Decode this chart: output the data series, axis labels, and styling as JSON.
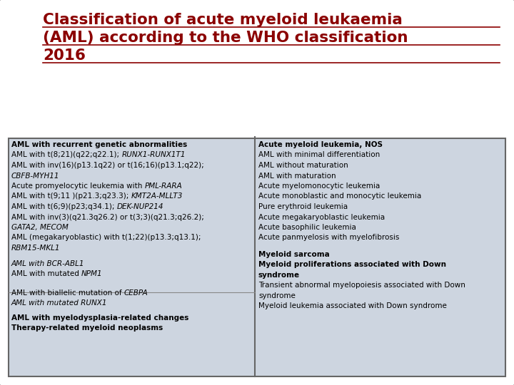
{
  "title_line1": "Classification of acute myeloid leukaemia",
  "title_line2": "(AML) according to the WHO classification",
  "title_line3": "2016",
  "title_color": "#8B0000",
  "bg_color": "#FFFFFF",
  "table_bg": "#CDD5E0",
  "font_size": 7.5,
  "title_font_size": 15.5,
  "left_items": [
    {
      "text": "AML with recurrent genetic abnormalities",
      "bold": true,
      "italic": false,
      "suffix": "",
      "suffix_italic": false
    },
    {
      "text": "AML with t(8;21)(q22;q22.1); ",
      "bold": false,
      "italic": false,
      "suffix": "RUNX1-RUNX1T1",
      "suffix_italic": true
    },
    {
      "text": "AML with inv(16)(p13.1q22) or t(16;16)(p13.1;q22);",
      "bold": false,
      "italic": false,
      "suffix": "",
      "suffix_italic": false
    },
    {
      "text": "CBFB-MYH11",
      "bold": false,
      "italic": true,
      "suffix": "",
      "suffix_italic": false
    },
    {
      "text": "Acute promyelocytic leukemia with ",
      "bold": false,
      "italic": false,
      "suffix": "PML-RARA",
      "suffix_italic": true
    },
    {
      "text": "AML with t(9;11 )(p21.3;q23.3); ",
      "bold": false,
      "italic": false,
      "suffix": "KMT2A-MLLT3",
      "suffix_italic": true
    },
    {
      "text": "AML with t(6;9)(p23;q34.1); ",
      "bold": false,
      "italic": false,
      "suffix": "DEK-NUP214",
      "suffix_italic": true
    },
    {
      "text": "AML with inv(3)(q21.3q26.2) or t(3;3)(q21.3;q26.2);",
      "bold": false,
      "italic": false,
      "suffix": "",
      "suffix_italic": false
    },
    {
      "text": "GATA2, MECOM",
      "bold": false,
      "italic": true,
      "suffix": "",
      "suffix_italic": false
    },
    {
      "text": "AML (megakaryoblastic) with t(1;22)(p13.3;q13.1);",
      "bold": false,
      "italic": false,
      "suffix": "",
      "suffix_italic": false
    },
    {
      "text": "RBM15-MKL1",
      "bold": false,
      "italic": true,
      "suffix": "",
      "suffix_italic": false
    },
    {
      "text": "",
      "bold": false,
      "italic": false,
      "suffix": "",
      "suffix_italic": false
    },
    {
      "text": "AML with BCR-ABL1",
      "bold": false,
      "italic": true,
      "suffix": "",
      "suffix_italic": false
    },
    {
      "text": "AML with mutated ",
      "bold": false,
      "italic": false,
      "suffix": "NPM1",
      "suffix_italic": true
    }
  ],
  "left_items2": [
    {
      "text": "AML with biallelic mutation of ",
      "bold": false,
      "italic": false,
      "suffix": "CEBPA",
      "suffix_italic": true
    },
    {
      "text": "AML with mutated RUNX1",
      "bold": false,
      "italic": true,
      "suffix": "",
      "suffix_italic": false
    }
  ],
  "left_items3": [
    {
      "text": "AML with myelodysplasia-related changes",
      "bold": true,
      "italic": false,
      "suffix": "",
      "suffix_italic": false
    },
    {
      "text": "Therapy-related myeloid neoplasms",
      "bold": true,
      "italic": false,
      "suffix": "",
      "suffix_italic": false
    }
  ],
  "right_items": [
    {
      "text": "Acute myeloid leukemia, NOS",
      "bold": true,
      "italic": false
    },
    {
      "text": "AML with minimal differentiation",
      "bold": false,
      "italic": false
    },
    {
      "text": "AML without maturation",
      "bold": false,
      "italic": false
    },
    {
      "text": "AML with maturation",
      "bold": false,
      "italic": false
    },
    {
      "text": "Acute myelomonocytic leukemia",
      "bold": false,
      "italic": false
    },
    {
      "text": "Acute monoblastic and monocytic leukemia",
      "bold": false,
      "italic": false
    },
    {
      "text": "Pure erythroid leukemia",
      "bold": false,
      "italic": false
    },
    {
      "text": "Acute megakaryoblastic leukemia",
      "bold": false,
      "italic": false
    },
    {
      "text": "Acute basophilic leukemia",
      "bold": false,
      "italic": false
    },
    {
      "text": "Acute panmyelosis with myelofibrosis",
      "bold": false,
      "italic": false
    },
    {
      "text": "",
      "bold": false,
      "italic": false
    },
    {
      "text": "Myeloid sarcoma",
      "bold": true,
      "italic": false
    },
    {
      "text": "Myeloid proliferations associated with Down",
      "bold": true,
      "italic": false
    },
    {
      "text": "syndrome",
      "bold": true,
      "italic": false
    },
    {
      "text": "Transient abnormal myelopoiesis associated with Down",
      "bold": false,
      "italic": false
    },
    {
      "text": "syndrome",
      "bold": false,
      "italic": false
    },
    {
      "text": "Myeloid leukemia associated with Down syndrome",
      "bold": false,
      "italic": false
    }
  ]
}
